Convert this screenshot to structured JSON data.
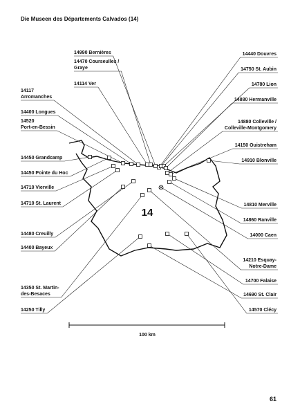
{
  "title": "Die Museen des Départements Calvados (14)",
  "department": "14",
  "scale": "100 km",
  "page_number": "61",
  "left_labels": [
    {
      "lines": [
        "14990 Bernières"
      ]
    },
    {
      "lines": [
        "14470 Courseulles /",
        "Graye"
      ]
    },
    {
      "lines": [
        "14114 Ver"
      ]
    },
    {
      "lines": [
        "14117",
        "Arromanches"
      ]
    },
    {
      "lines": [
        "14400 Longues"
      ]
    },
    {
      "lines": [
        "14520",
        "Port-en-Bessin"
      ]
    },
    {
      "lines": [
        "14450 Grandcamp"
      ]
    },
    {
      "lines": [
        "14450 Pointe du Hoc"
      ]
    },
    {
      "lines": [
        "14710 Vierville"
      ]
    },
    {
      "lines": [
        "14710 St. Laurent"
      ]
    },
    {
      "lines": [
        "14480 Creuilly"
      ]
    },
    {
      "lines": [
        "14400 Bayeux"
      ]
    },
    {
      "lines": [
        "14350 St. Martin-",
        "des-Besaces"
      ]
    },
    {
      "lines": [
        "14250 Tilly"
      ]
    }
  ],
  "right_labels": [
    {
      "lines": [
        "14440 Douvres"
      ]
    },
    {
      "lines": [
        "14750 St. Aubin"
      ]
    },
    {
      "lines": [
        "14780 Lion"
      ]
    },
    {
      "lines": [
        "14880 Hermanville"
      ]
    },
    {
      "lines": [
        "14880 Colleville /",
        "Colleville-Montgomery"
      ]
    },
    {
      "lines": [
        "14150 Ouistreham"
      ]
    },
    {
      "lines": [
        "14910 Blonville"
      ]
    },
    {
      "lines": [
        "14810 Merville"
      ]
    },
    {
      "lines": [
        "14860 Ranville"
      ]
    },
    {
      "lines": [
        "14000 Caen"
      ]
    },
    {
      "lines": [
        "14210 Esquay-",
        "Notre-Dame"
      ]
    },
    {
      "lines": [
        "14700 Falaise"
      ]
    },
    {
      "lines": [
        "14690 St. Clair"
      ]
    },
    {
      "lines": [
        "14570 Clécy"
      ]
    }
  ]
}
